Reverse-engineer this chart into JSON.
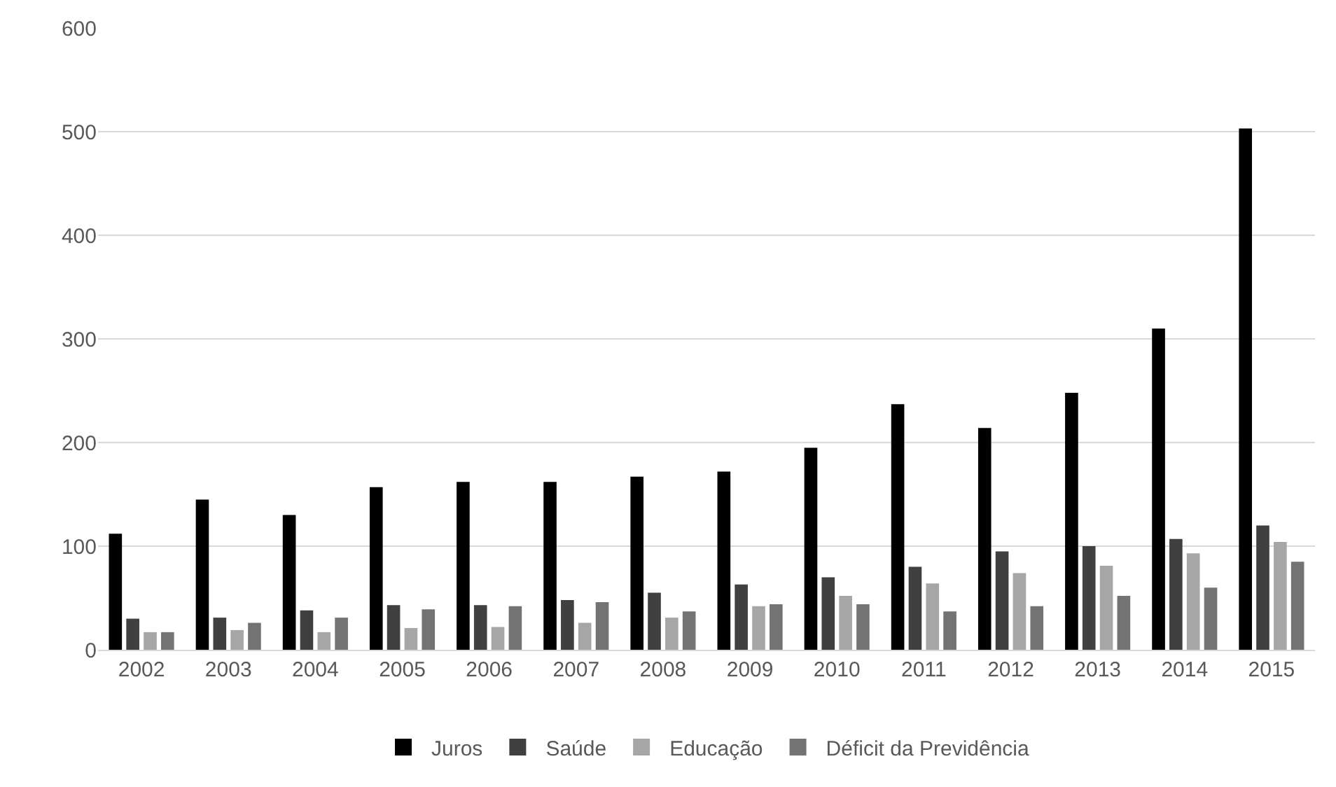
{
  "chart_data": {
    "type": "bar",
    "categories": [
      "2002",
      "2003",
      "2004",
      "2005",
      "2006",
      "2007",
      "2008",
      "2009",
      "2010",
      "2011",
      "2012",
      "2013",
      "2014",
      "2015"
    ],
    "series": [
      {
        "name": "Juros",
        "color": "#000000",
        "values": [
          112,
          145,
          130,
          157,
          162,
          162,
          167,
          172,
          195,
          237,
          214,
          248,
          310,
          503
        ]
      },
      {
        "name": "Saúde",
        "color": "#404040",
        "values": [
          30,
          31,
          38,
          43,
          43,
          48,
          55,
          63,
          70,
          80,
          95,
          100,
          107,
          120
        ]
      },
      {
        "name": "Educação",
        "color": "#a6a6a6",
        "values": [
          17,
          19,
          17,
          21,
          22,
          26,
          31,
          42,
          52,
          64,
          74,
          81,
          93,
          104
        ]
      },
      {
        "name": "Déficit da Previdência",
        "color": "#737373",
        "values": [
          17,
          26,
          31,
          39,
          42,
          46,
          37,
          44,
          44,
          37,
          42,
          52,
          60,
          85
        ]
      }
    ],
    "ylim": [
      0,
      600
    ],
    "yticks": [
      0,
      100,
      200,
      300,
      400,
      500,
      600
    ],
    "grid": "y",
    "legend": "bottom"
  }
}
